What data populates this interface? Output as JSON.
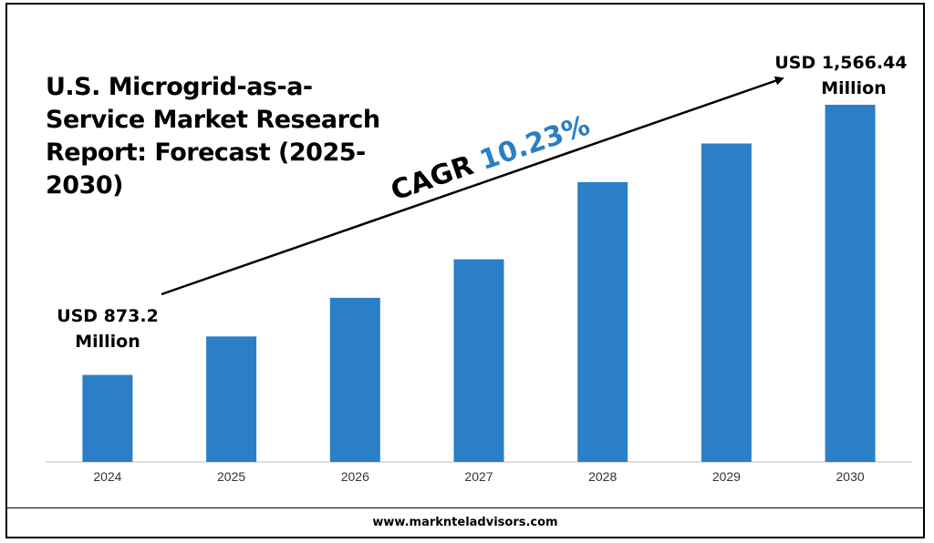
{
  "title": "U.S. Microgrid-as-a-Service Market Research Report: Forecast (2025-2030)",
  "cagr": {
    "label": "CAGR",
    "value": "10.23%"
  },
  "annotations": {
    "start_line1": "USD 873.2",
    "start_line2": "Million",
    "end_line1": "USD 1,566.44",
    "end_line2": "Million"
  },
  "footer": {
    "url": "www.marknteladvisors.com"
  },
  "colors": {
    "bar": "#2a7fc6",
    "cagr_value": "#2a7fc6",
    "text": "#000000"
  },
  "chart_data": {
    "type": "bar",
    "title": "U.S. Microgrid-as-a-Service Market Research Report: Forecast (2025-2030)",
    "categories": [
      "2024",
      "2025",
      "2026",
      "2027",
      "2028",
      "2029",
      "2030"
    ],
    "values": [
      873.2,
      972,
      1071,
      1170,
      1368,
      1467,
      1566.44
    ],
    "unit": "USD Million",
    "ylim": [
      650,
      1600
    ],
    "grid": false,
    "legend": "none"
  }
}
